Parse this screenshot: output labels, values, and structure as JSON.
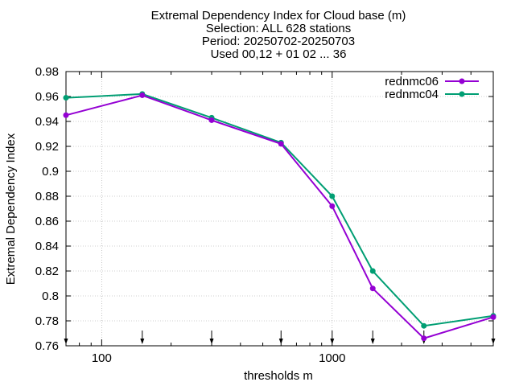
{
  "title_lines": [
    "Extremal Dependency Index  for Cloud base (m)",
    "Selection: ALL    628 stations",
    "Period: 20250702-20250703",
    "Used 00,12 + 01 02 ... 36"
  ],
  "chart_data": {
    "type": "line",
    "xlabel": "thresholds m",
    "ylabel": "Extremal Dependency Index",
    "xscale": "log",
    "xlim": [
      70,
      5000
    ],
    "ylim": [
      0.76,
      0.98
    ],
    "x_ticks": [
      "100",
      "1000"
    ],
    "y_ticks": [
      "0.76",
      "0.78",
      "0.8",
      "0.82",
      "0.84",
      "0.86",
      "0.88",
      "0.9",
      "0.92",
      "0.94",
      "0.96",
      "0.98"
    ],
    "grid": true,
    "legend_position": "top-right",
    "x": [
      70,
      150,
      300,
      600,
      1000,
      1500,
      2500,
      5000
    ],
    "series": [
      {
        "name": "rednmc06",
        "color": "#9400d3",
        "values": [
          0.945,
          0.961,
          0.941,
          0.922,
          0.872,
          0.806,
          0.766,
          0.783
        ]
      },
      {
        "name": "rednmc04",
        "color": "#009e73",
        "values": [
          0.959,
          0.962,
          0.943,
          0.923,
          0.88,
          0.82,
          0.776,
          0.784
        ]
      }
    ]
  }
}
